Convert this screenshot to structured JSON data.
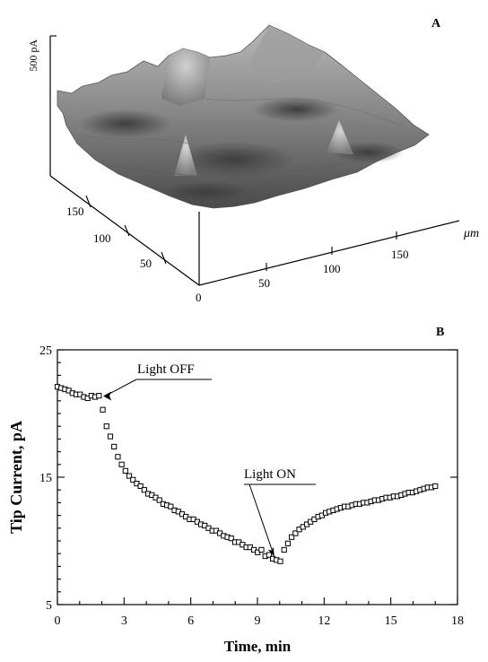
{
  "chart_data": [
    {
      "panel_label": "A",
      "type": "surface",
      "z_label": "500 pA",
      "x_axis": {
        "unit": "μm",
        "ticks": [
          "50",
          "100",
          "150"
        ]
      },
      "y_axis": {
        "ticks": [
          "50",
          "100",
          "150"
        ]
      },
      "origin_label": "0",
      "peaks": [
        "peak at about (100, 170) μm",
        "peak at about (60, 60) μm",
        "peak at about (140, 100) μm"
      ]
    },
    {
      "panel_label": "B",
      "type": "scatter",
      "xlabel": "Time, min",
      "ylabel": "Tip Current, pA",
      "xlim": [
        0,
        18
      ],
      "ylim": [
        5,
        25
      ],
      "xticks": [
        "0",
        "3",
        "6",
        "9",
        "12",
        "15",
        "18"
      ],
      "yticks": [
        "5",
        "15",
        "25"
      ],
      "marker": "open-square",
      "annotations": [
        {
          "text": "Light OFF",
          "x": 1.9,
          "y": 21.3
        },
        {
          "text": "Light ON",
          "x": 9.8,
          "y": 8.4
        }
      ],
      "x": [
        0.0,
        0.17,
        0.34,
        0.51,
        0.68,
        0.85,
        1.02,
        1.19,
        1.36,
        1.53,
        1.7,
        1.87,
        2.04,
        2.21,
        2.38,
        2.55,
        2.72,
        2.89,
        3.06,
        3.23,
        3.4,
        3.57,
        3.74,
        3.91,
        4.08,
        4.25,
        4.42,
        4.59,
        4.76,
        4.93,
        5.1,
        5.27,
        5.44,
        5.61,
        5.78,
        5.95,
        6.12,
        6.29,
        6.46,
        6.63,
        6.8,
        6.97,
        7.14,
        7.31,
        7.48,
        7.65,
        7.82,
        7.99,
        8.16,
        8.33,
        8.5,
        8.67,
        8.84,
        9.01,
        9.18,
        9.35,
        9.52,
        9.69,
        9.86,
        10.03,
        10.2,
        10.37,
        10.54,
        10.71,
        10.88,
        11.05,
        11.22,
        11.39,
        11.56,
        11.73,
        11.9,
        12.07,
        12.24,
        12.41,
        12.58,
        12.75,
        12.92,
        13.09,
        13.26,
        13.43,
        13.6,
        13.77,
        13.94,
        14.11,
        14.28,
        14.45,
        14.62,
        14.79,
        14.96,
        15.13,
        15.3,
        15.47,
        15.64,
        15.81,
        15.98,
        16.15,
        16.32,
        16.49,
        16.66,
        16.83,
        17.0
      ],
      "y": [
        22.1,
        22.0,
        21.9,
        21.8,
        21.6,
        21.5,
        21.5,
        21.3,
        21.2,
        21.4,
        21.3,
        21.4,
        20.3,
        19.0,
        18.2,
        17.4,
        16.6,
        16.0,
        15.5,
        15.1,
        14.8,
        14.5,
        14.3,
        14.0,
        13.7,
        13.6,
        13.4,
        13.2,
        12.9,
        12.8,
        12.7,
        12.4,
        12.3,
        12.1,
        11.9,
        11.7,
        11.7,
        11.5,
        11.3,
        11.2,
        11.0,
        10.8,
        10.8,
        10.6,
        10.4,
        10.3,
        10.2,
        9.9,
        9.9,
        9.7,
        9.5,
        9.5,
        9.3,
        9.1,
        9.3,
        8.8,
        8.9,
        8.6,
        8.5,
        8.4,
        9.3,
        9.8,
        10.3,
        10.6,
        10.9,
        11.1,
        11.3,
        11.5,
        11.7,
        11.9,
        12.0,
        12.2,
        12.3,
        12.4,
        12.5,
        12.6,
        12.7,
        12.7,
        12.8,
        12.9,
        12.9,
        13.0,
        13.0,
        13.1,
        13.2,
        13.2,
        13.3,
        13.4,
        13.4,
        13.5,
        13.5,
        13.6,
        13.7,
        13.8,
        13.8,
        13.9,
        14.0,
        14.1,
        14.2,
        14.2,
        14.3
      ]
    }
  ]
}
